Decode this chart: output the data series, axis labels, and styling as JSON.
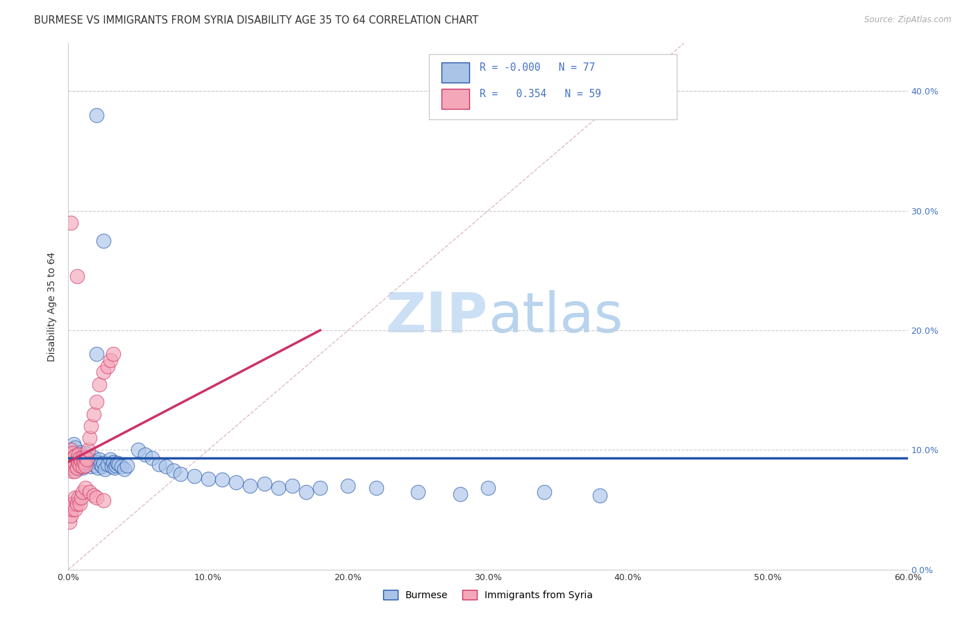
{
  "title": "BURMESE VS IMMIGRANTS FROM SYRIA DISABILITY AGE 35 TO 64 CORRELATION CHART",
  "source": "Source: ZipAtlas.com",
  "ylabel": "Disability Age 35 to 64",
  "xlim": [
    0.0,
    0.6
  ],
  "ylim": [
    0.0,
    0.44
  ],
  "xtick_vals": [
    0.0,
    0.1,
    0.2,
    0.3,
    0.4,
    0.5,
    0.6
  ],
  "xtick_labels": [
    "0.0%",
    "10.0%",
    "20.0%",
    "30.0%",
    "40.0%",
    "50.0%",
    "60.0%"
  ],
  "ytick_vals": [
    0.0,
    0.1,
    0.2,
    0.3,
    0.4
  ],
  "ytick_labels_right": [
    "0.0%",
    "10.0%",
    "20.0%",
    "30.0%",
    "40.0%"
  ],
  "legend_label1": "Burmese",
  "legend_label2": "Immigrants from Syria",
  "R1": "-0.000",
  "N1": "77",
  "R2": "0.354",
  "N2": "59",
  "color_burmese": "#aac4e8",
  "color_syria": "#f4a7b9",
  "line_color_burmese": "#2255aa",
  "line_color_syria": "#cc3366",
  "diag_color": "#ddbbcc",
  "watermark_color": "#cce0f5",
  "background_color": "#ffffff",
  "grid_color": "#cccccc"
}
